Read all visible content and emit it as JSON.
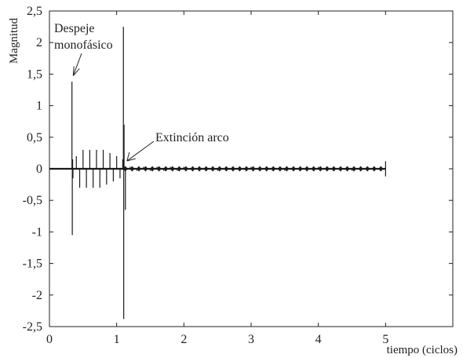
{
  "chart_data": {
    "type": "line",
    "title": "",
    "xlabel": "tiempo (ciclos)",
    "ylabel": "Magnitud",
    "xlim": [
      0,
      6
    ],
    "ylim": [
      -2.5,
      2.5
    ],
    "x_ticks": [
      "0",
      "1",
      "2",
      "3",
      "4",
      "5"
    ],
    "y_ticks": [
      "2,5",
      "2",
      "1,5",
      "1",
      "0,5",
      "0",
      "-0,5",
      "-1",
      "-1,5",
      "-2",
      "-2,5"
    ],
    "grid": false,
    "series": [
      {
        "color": "#1a1a1a",
        "x": [
          0,
          0.33,
          0.335,
          0.34,
          0.345,
          0.35,
          0.4,
          0.45,
          0.5,
          0.55,
          0.6,
          0.65,
          0.7,
          0.75,
          0.8,
          0.85,
          0.9,
          0.95,
          1.0,
          1.05,
          1.09,
          1.1,
          1.105,
          1.11,
          1.13,
          1.2,
          1.3,
          1.4,
          1.5,
          1.6,
          1.7,
          1.8,
          1.9,
          2.0,
          2.5,
          3.0,
          3.5,
          4.0,
          4.5,
          5.0
        ],
        "y": [
          0,
          0,
          1.38,
          -1.05,
          0.15,
          -0.15,
          0.2,
          -0.3,
          0.3,
          -0.3,
          0.3,
          -0.3,
          0.3,
          -0.3,
          0.3,
          -0.25,
          0.25,
          -0.2,
          0.2,
          -0.15,
          0.15,
          2.25,
          -2.38,
          0.7,
          -0.65,
          0.03,
          -0.03,
          0.03,
          -0.03,
          0.03,
          -0.03,
          0.03,
          -0.03,
          0.03,
          -0.03,
          0.03,
          -0.03,
          0.03,
          -0.03,
          0
        ]
      }
    ],
    "annotations": [
      {
        "text_lines": [
          "Despeje",
          "monofásico"
        ],
        "x": 0.33,
        "y": 1.45
      },
      {
        "text_lines": [
          "Extinción arco"
        ],
        "x": 1.2,
        "y": 0.1
      }
    ]
  }
}
